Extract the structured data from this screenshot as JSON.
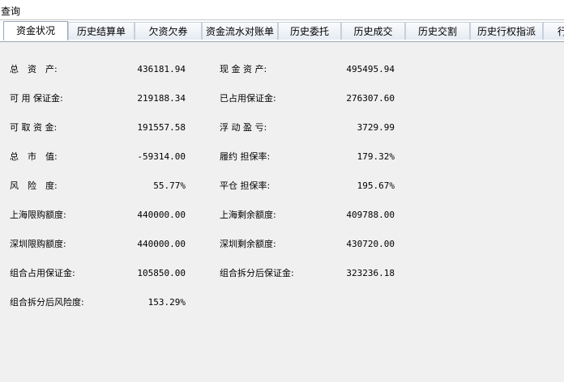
{
  "window": {
    "title": "查询"
  },
  "tabs": [
    "资金状况",
    "历史结算单",
    "欠资欠券",
    "资金流水对账单",
    "历史委托",
    "历史成交",
    "历史交割",
    "历史行权指派",
    "行权"
  ],
  "active_tab": 0,
  "rows": [
    {
      "left": {
        "label": "总　资　产:",
        "value": "436181.94"
      },
      "right": {
        "label": "现 金 资 产:",
        "value": "495495.94"
      }
    },
    {
      "left": {
        "label": "可 用 保证金:",
        "value": "219188.34"
      },
      "right": {
        "label": "已占用保证金:",
        "value": "276307.60"
      }
    },
    {
      "left": {
        "label": "可 取 资 金:",
        "value": "191557.58"
      },
      "right": {
        "label": "浮 动 盈 亏:",
        "value": "3729.99"
      }
    },
    {
      "left": {
        "label": "总　市　值:",
        "value": "-59314.00"
      },
      "right": {
        "label": "履约 担保率:",
        "value": "179.32%"
      }
    },
    {
      "left": {
        "label": "风　险　度:",
        "value": "55.77%"
      },
      "right": {
        "label": "平仓 担保率:",
        "value": "195.67%"
      }
    },
    {
      "left": {
        "label": "上海限购额度:",
        "value": "440000.00"
      },
      "right": {
        "label": "上海剩余额度:",
        "value": "409788.00"
      }
    },
    {
      "left": {
        "label": "深圳限购额度:",
        "value": "440000.00"
      },
      "right": {
        "label": "深圳剩余额度:",
        "value": "430720.00"
      }
    },
    {
      "left": {
        "label": "组合占用保证金:",
        "value": "105850.00"
      },
      "right": {
        "label": "组合拆分后保证金:",
        "value": "323236.18"
      }
    },
    {
      "left": {
        "label": "组合拆分后风险度:",
        "value": "153.29%"
      }
    }
  ]
}
